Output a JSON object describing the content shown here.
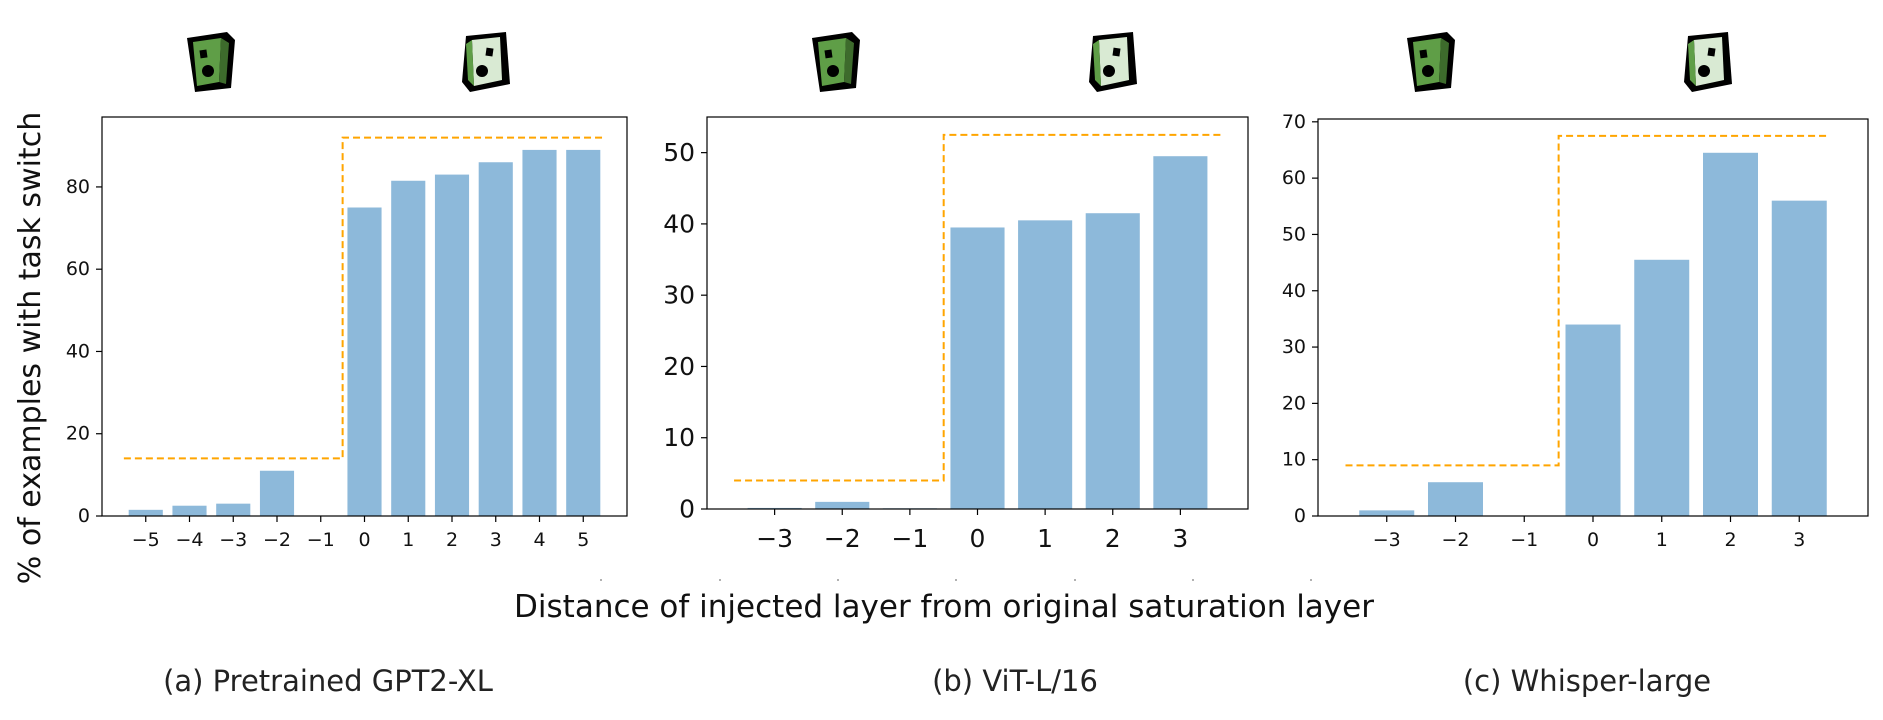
{
  "figure": {
    "ylabel": "% of examples with task switch",
    "xlabel": "Distance of injected layer from original saturation layer",
    "colors": {
      "bar": "#8db9da",
      "threshold": "#ffa500",
      "axis": "#000000",
      "icon_left_fill": "#5f9e47",
      "icon_right_fill": "#d9ead3",
      "icon_outline": "#000000"
    },
    "icons": [
      "switch-off-icon",
      "switch-on-icon"
    ]
  },
  "chart_data": [
    {
      "type": "bar",
      "caption": "(a) Pretrained GPT2-XL",
      "categories": [
        "−5",
        "−4",
        "−3",
        "−2",
        "−1",
        "0",
        "1",
        "2",
        "3",
        "4",
        "5"
      ],
      "x": [
        -5,
        -4,
        -3,
        -2,
        -1,
        0,
        1,
        2,
        3,
        4,
        5
      ],
      "values": [
        1.5,
        2.5,
        3,
        11,
        0,
        75,
        81.5,
        83,
        86,
        89,
        89
      ],
      "yticks": [
        0,
        20,
        40,
        60,
        80
      ],
      "ylim": [
        0,
        97
      ],
      "xlim": [
        -6,
        6
      ],
      "threshold": {
        "low": 14,
        "high": 92,
        "step_at": -0.5,
        "xmin": -5.5,
        "xmax": 5.5
      }
    },
    {
      "type": "bar",
      "caption": "(b) ViT-L/16",
      "categories": [
        "−3",
        "−2",
        "−1",
        "0",
        "1",
        "2",
        "3"
      ],
      "x": [
        -3,
        -2,
        -1,
        0,
        1,
        2,
        3
      ],
      "values": [
        0.15,
        1,
        0.1,
        39.5,
        40.5,
        41.5,
        49.5
      ],
      "yticks": [
        0,
        10,
        20,
        30,
        40,
        50
      ],
      "ylim": [
        0,
        55
      ],
      "xlim": [
        -4,
        4
      ],
      "threshold": {
        "low": 4,
        "high": 52.5,
        "step_at": -0.5,
        "xmin": -3.6,
        "xmax": 3.6
      }
    },
    {
      "type": "bar",
      "caption": "(c) Whisper-large",
      "categories": [
        "−3",
        "−2",
        "−1",
        "0",
        "1",
        "2",
        "3"
      ],
      "x": [
        -3,
        -2,
        -1,
        0,
        1,
        2,
        3
      ],
      "values": [
        1,
        6,
        0,
        34,
        45.5,
        64.5,
        56
      ],
      "yticks": [
        0,
        10,
        20,
        30,
        40,
        50,
        60,
        70
      ],
      "ylim": [
        0,
        70.5
      ],
      "xlim": [
        -4,
        4
      ],
      "threshold": {
        "low": 9,
        "high": 67.5,
        "step_at": -0.5,
        "xmin": -3.6,
        "xmax": 3.4
      }
    }
  ]
}
